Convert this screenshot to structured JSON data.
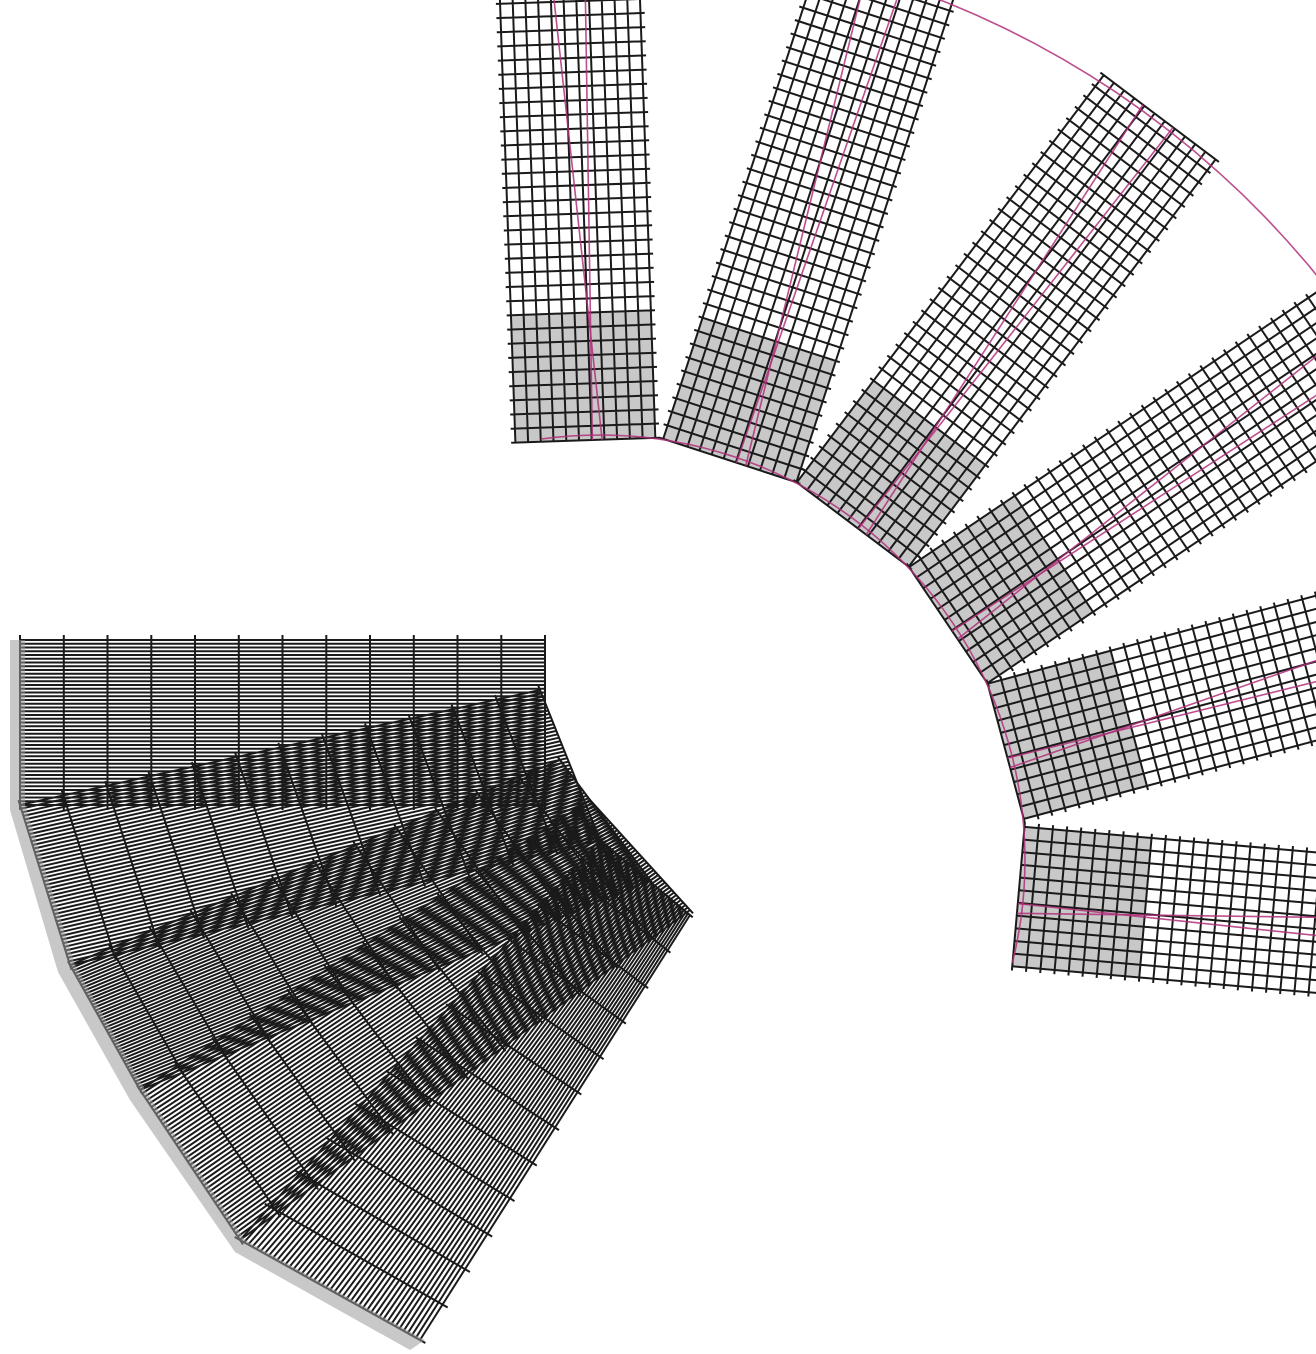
{
  "figure": {
    "description_visible_text": "",
    "colors": {
      "mesh": "#1a1a1a",
      "deformed_outline": "#b0307a",
      "shadow": "#9a9a9a",
      "background": "#ffffff"
    },
    "groups": [
      {
        "id": "upper-fan",
        "panel_count": 6
      },
      {
        "id": "lower-fan",
        "panel_count": 5
      }
    ]
  }
}
